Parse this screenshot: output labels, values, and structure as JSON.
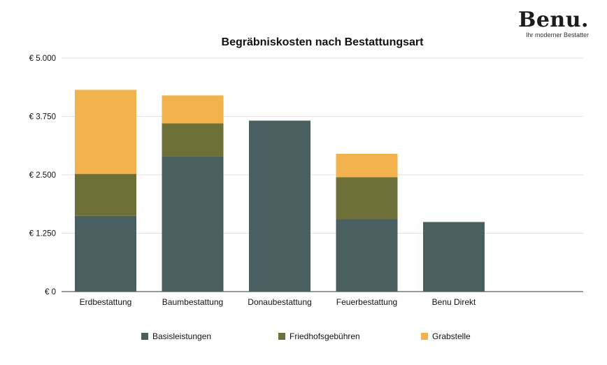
{
  "logo": {
    "name": "Benu.",
    "tagline": "Ihr moderner Bestatter"
  },
  "chart_data": {
    "type": "bar",
    "stacked": true,
    "title": "Begräbniskosten nach Bestattungsart",
    "xlabel": "",
    "ylabel": "",
    "categories": [
      "Erdbestattung",
      "Baumbestattung",
      "Donaubestattung",
      "Feuerbestattung",
      "Benu Direkt"
    ],
    "series": [
      {
        "name": "Basisleistungen",
        "color": "#4a5f60",
        "values": [
          1620,
          2900,
          3660,
          1550,
          1490
        ]
      },
      {
        "name": "Friedhofsgebühren",
        "color": "#6e7039",
        "values": [
          900,
          700,
          0,
          900,
          0
        ]
      },
      {
        "name": "Grabstelle",
        "color": "#f2b24e",
        "values": [
          1800,
          600,
          0,
          500,
          0
        ]
      }
    ],
    "ylim": [
      0,
      5000
    ],
    "yticks": [
      0,
      1250,
      2500,
      3750,
      5000
    ],
    "ytick_labels": [
      "€ 0",
      "€ 1.250",
      "€ 2.500",
      "€ 3.750",
      "€ 5.000"
    ],
    "grid": true,
    "legend_position": "bottom"
  }
}
